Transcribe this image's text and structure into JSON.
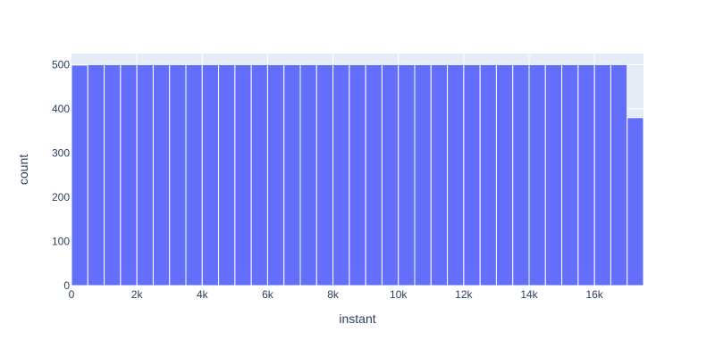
{
  "chart_data": {
    "type": "bar",
    "histogram": true,
    "title": "",
    "xlabel": "instant",
    "ylabel": "count",
    "bin_width": 500,
    "bin_start": 0,
    "xlim": [
      0,
      17500
    ],
    "ylim": [
      0,
      525
    ],
    "values": [
      499,
      500,
      500,
      500,
      500,
      500,
      500,
      500,
      500,
      500,
      500,
      500,
      500,
      500,
      500,
      500,
      500,
      500,
      500,
      500,
      500,
      500,
      500,
      500,
      500,
      500,
      500,
      500,
      500,
      500,
      500,
      500,
      500,
      500,
      380
    ],
    "x_ticks": [
      {
        "value": 0,
        "label": "0"
      },
      {
        "value": 2000,
        "label": "2k"
      },
      {
        "value": 4000,
        "label": "4k"
      },
      {
        "value": 6000,
        "label": "6k"
      },
      {
        "value": 8000,
        "label": "8k"
      },
      {
        "value": 10000,
        "label": "10k"
      },
      {
        "value": 12000,
        "label": "12k"
      },
      {
        "value": 14000,
        "label": "14k"
      },
      {
        "value": 16000,
        "label": "16k"
      }
    ],
    "y_ticks": [
      {
        "value": 0,
        "label": "0"
      },
      {
        "value": 100,
        "label": "100"
      },
      {
        "value": 200,
        "label": "200"
      },
      {
        "value": 300,
        "label": "300"
      },
      {
        "value": 400,
        "label": "400"
      },
      {
        "value": 500,
        "label": "500"
      }
    ],
    "grid": true,
    "bar_color": "#636efa",
    "plot_bg": "#e5ecf6",
    "grid_color": "#ffffff"
  }
}
